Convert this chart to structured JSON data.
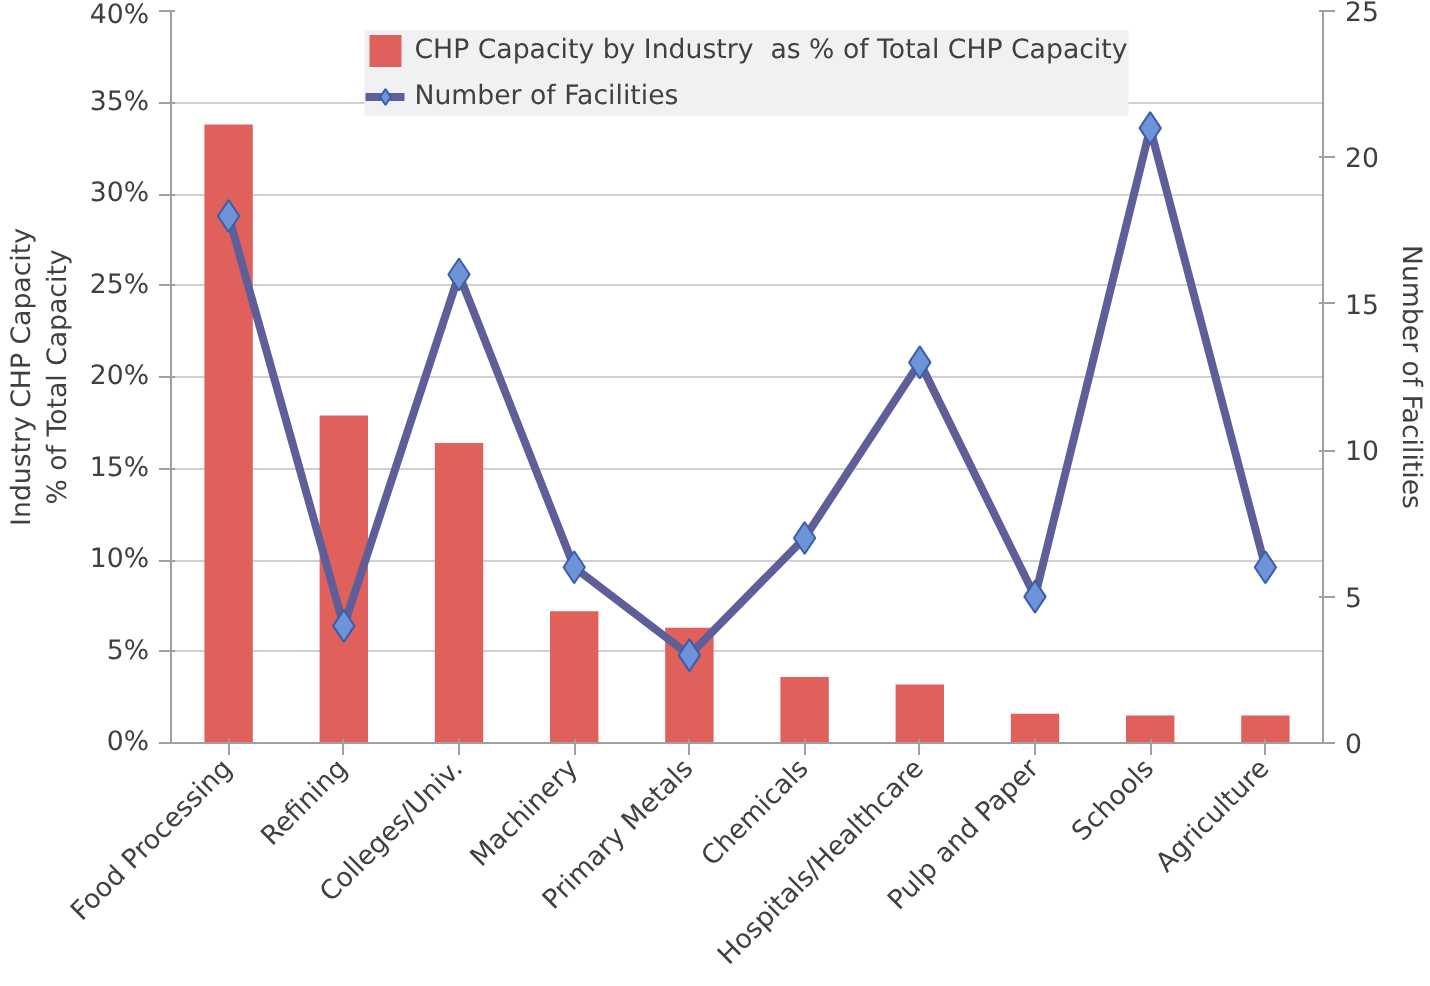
{
  "chart_data": {
    "type": "bar",
    "categories": [
      "Food Processing",
      "Refining",
      "Colleges/Univ.",
      "Machinery",
      "Primary Metals",
      "Chemicals",
      "Hospitals/Healthcare",
      "Pulp and Paper",
      "Schools",
      "Agriculture"
    ],
    "ylabel": "Industry CHP Capacity\n% of Total Capacity",
    "y2label": "Number of Facilities",
    "ylim": [
      0,
      40
    ],
    "yticks": [
      {
        "value": 0,
        "label": "0%"
      },
      {
        "value": 5,
        "label": "5%"
      },
      {
        "value": 10,
        "label": "10%"
      },
      {
        "value": 15,
        "label": "15%"
      },
      {
        "value": 20,
        "label": "20%"
      },
      {
        "value": 25,
        "label": "25%"
      },
      {
        "value": 30,
        "label": "30%"
      },
      {
        "value": 35,
        "label": "35%"
      },
      {
        "value": 40,
        "label": "40%"
      }
    ],
    "y2lim": [
      0,
      25
    ],
    "y2ticks": [
      0,
      5,
      10,
      15,
      20,
      25
    ],
    "grid": "y",
    "legend": "top",
    "series": [
      {
        "name": "CHP Capacity by Industry  as % of Total CHP Capacity",
        "color": "#e0605c",
        "values": [
          33.8,
          17.9,
          16.4,
          7.2,
          6.3,
          3.6,
          3.2,
          1.6,
          1.5,
          1.5
        ]
      },
      {
        "name": "Number of Facilities",
        "type": "line",
        "axis": "y2",
        "color": "#5e5f99",
        "marker": "diamond",
        "values": [
          18,
          4,
          16,
          6,
          3,
          7,
          13,
          5,
          21,
          6
        ]
      }
    ]
  }
}
